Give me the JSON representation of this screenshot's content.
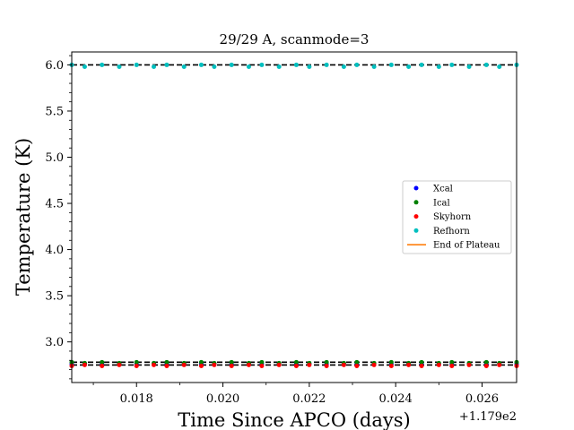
{
  "chart_data": {
    "type": "scatter",
    "title": "29/29 A, scanmode=3",
    "xlabel": "Time Since APCO (days)",
    "ylabel": "Temperature (K)",
    "x_offset_label": "+1.179e2",
    "xlim": [
      0.0165,
      0.0268
    ],
    "ylim": [
      2.56,
      6.14
    ],
    "x_ticks": [
      0.018,
      0.02,
      0.022,
      0.024,
      0.026
    ],
    "x_tick_labels": [
      "0.018",
      "0.020",
      "0.022",
      "0.024",
      "0.026"
    ],
    "y_ticks": [
      3.0,
      3.5,
      4.0,
      4.5,
      5.0,
      5.5,
      6.0
    ],
    "y_tick_labels": [
      "3.0",
      "3.5",
      "4.0",
      "4.5",
      "5.0",
      "5.5",
      "6.0"
    ],
    "x": [
      0.0165,
      0.0168,
      0.0172,
      0.0176,
      0.018,
      0.0184,
      0.0187,
      0.0191,
      0.0195,
      0.0198,
      0.0202,
      0.0206,
      0.0209,
      0.0213,
      0.0217,
      0.022,
      0.0224,
      0.0228,
      0.0231,
      0.0235,
      0.0239,
      0.0243,
      0.0246,
      0.025,
      0.0253,
      0.0257,
      0.0261,
      0.0264,
      0.0268
    ],
    "series": [
      {
        "name": "Xcal",
        "color": "#0000ff",
        "marker": "dot",
        "y_pattern": [
          2.76,
          2.76
        ]
      },
      {
        "name": "Ical",
        "color": "#008000",
        "marker": "dot",
        "y_pattern": [
          2.78,
          2.77
        ]
      },
      {
        "name": "Skyhorn",
        "color": "#ff0000",
        "marker": "dot",
        "y_pattern": [
          2.74,
          2.75
        ]
      },
      {
        "name": "Refhorn",
        "color": "#00bfbf",
        "marker": "dot",
        "y_pattern": [
          6.0,
          5.98
        ]
      },
      {
        "name": "End of Plateau",
        "color": "#ff7f0e",
        "marker": "line"
      }
    ],
    "reference_lines_y": [
      6.0,
      2.78,
      2.75
    ],
    "reference_line_color": "#000000",
    "legend_position": "center-right",
    "grid": false
  }
}
